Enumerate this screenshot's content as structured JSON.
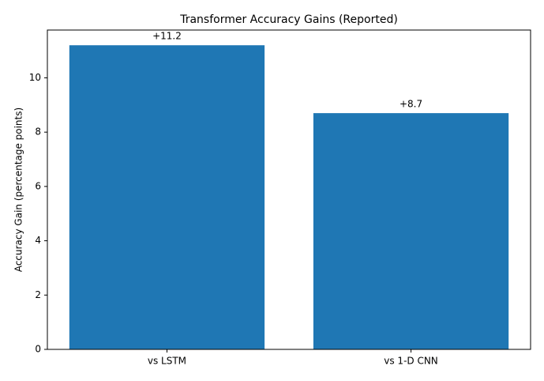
{
  "chart_data": {
    "type": "bar",
    "title": "Transformer Accuracy Gains (Reported)",
    "ylabel": "Accuracy Gain (percentage points)",
    "categories": [
      "vs LSTM",
      "vs 1-D CNN"
    ],
    "values": [
      11.2,
      8.7
    ],
    "value_labels": [
      "+11.2",
      "+8.7"
    ],
    "color": "#1f77b4",
    "ylim": [
      0,
      11.76
    ],
    "yticks": [
      0,
      2,
      4,
      6,
      8,
      10
    ],
    "grid": false
  }
}
